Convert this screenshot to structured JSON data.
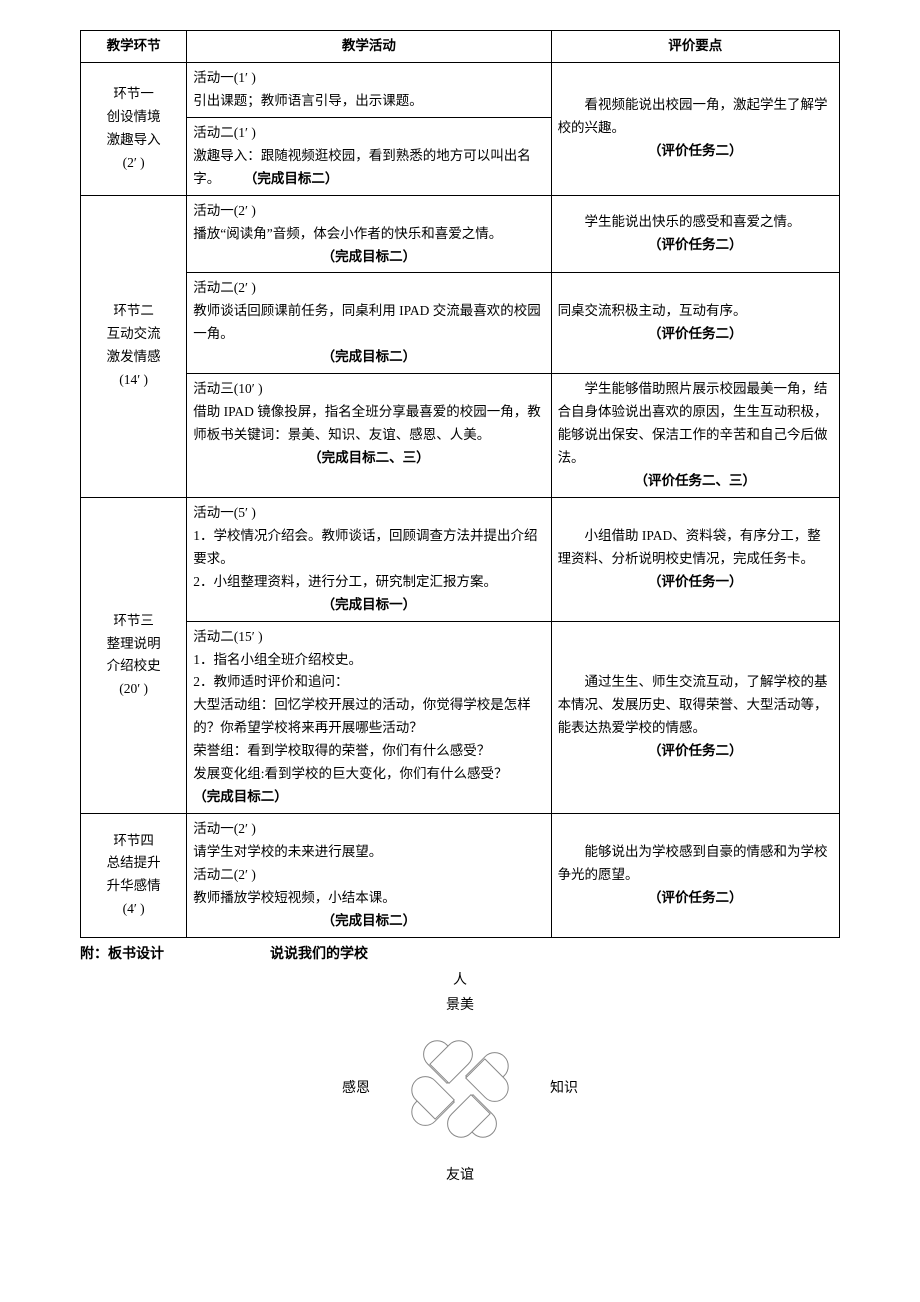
{
  "headers": {
    "stage": "教学环节",
    "activity": "教学活动",
    "eval": "评价要点"
  },
  "stages": [
    {
      "title_lines": [
        "环节一",
        "创设情境",
        "激趣导入",
        "(2′ )"
      ]
    },
    {
      "title_lines": [
        "环节二",
        "互动交流",
        "激发情感",
        "(14′ )"
      ]
    },
    {
      "title_lines": [
        "环节三",
        "整理说明",
        "介绍校史",
        "(20′ )"
      ]
    },
    {
      "title_lines": [
        "环节四",
        "总结提升",
        "升华感情",
        "(4′ )"
      ]
    }
  ],
  "rows": [
    {
      "activity_head": "活动一(1′ )",
      "activity_body": "引出课题；教师语言引导，出示课题。",
      "goal": "",
      "eval_body": "　　看视频能说出校园一角，激起学生了解学校的兴趣。",
      "eval_tag": "（评价任务二）"
    },
    {
      "activity_head": "活动二(1′ )",
      "activity_body": "激趣导入：跟随视频逛校园，看到熟悉的地方可以叫出名字。",
      "goal": "（完成目标二）",
      "goal_inline": true
    },
    {
      "activity_head": "活动一(2′ )",
      "activity_body": "播放“阅读角”音频，体会小作者的快乐和喜爱之情。",
      "goal": "（完成目标二）",
      "eval_body": "　　学生能说出快乐的感受和喜爱之情。",
      "eval_tag": "（评价任务二）"
    },
    {
      "activity_head": "活动二(2′ )",
      "activity_body": "教师谈话回顾课前任务，同桌利用 IPAD 交流最喜欢的校园一角。",
      "goal": "（完成目标二）",
      "eval_body": "同桌交流积极主动，互动有序。",
      "eval_tag": "（评价任务二）"
    },
    {
      "activity_head": "活动三(10′ )",
      "activity_body": "借助 IPAD 镜像投屏，指名全班分享最喜爱的校园一角，教师板书关键词：景美、知识、友谊、感恩、人美。",
      "goal": "（完成目标二、三）",
      "eval_body": "　　学生能够借助照片展示校园最美一角，结合自身体验说出喜欢的原因，生生互动积极，能够说出保安、保洁工作的辛苦和自己今后做法。",
      "eval_tag": "（评价任务二、三）"
    },
    {
      "activity_head": "活动一(5′ )",
      "activity_lines": [
        "1．学校情况介绍会。教师谈话，回顾调查方法并提出介绍要求。",
        "2．小组整理资料，进行分工，研究制定汇报方案。"
      ],
      "goal": "（完成目标一）",
      "eval_body": "　　小组借助 IPAD、资料袋，有序分工，整理资料、分析说明校史情况，完成任务卡。",
      "eval_tag": "（评价任务一）"
    },
    {
      "activity_head": "活动二(15′ )",
      "activity_lines": [
        "1．指名小组全班介绍校史。",
        "2．教师适时评价和追问：",
        "大型活动组：回忆学校开展过的活动，你觉得学校是怎样的？你希望学校将来再开展哪些活动？",
        "荣誉组：看到学校取得的荣誉，你们有什么感受？",
        "发展变化组:看到学校的巨大变化，你们有什么感受？"
      ],
      "goal": "（完成目标二）",
      "goal_inline_last": true,
      "eval_body": "　　通过生生、师生交流互动，了解学校的基本情况、发展历史、取得荣誉、大型活动等，能表达热爱学校的情感。",
      "eval_tag": "（评价任务二）"
    },
    {
      "activity_head": "活动一(2′ )",
      "activity_lines": [
        "请学生对学校的未来进行展望。",
        "活动二(2′ )",
        "教师播放学校短视频，小结本课。"
      ],
      "goal": "（完成目标二）",
      "eval_body": "　　能够说出为学校感到自豪的情感和为学校争光的愿望。",
      "eval_tag": "（评价任务二）"
    }
  ],
  "appendix": {
    "label": "附：板书设计",
    "title": "说说我们的学校",
    "top1": "人",
    "top2": "景美",
    "left": "感恩",
    "right": "知识",
    "bottom": "友谊"
  }
}
